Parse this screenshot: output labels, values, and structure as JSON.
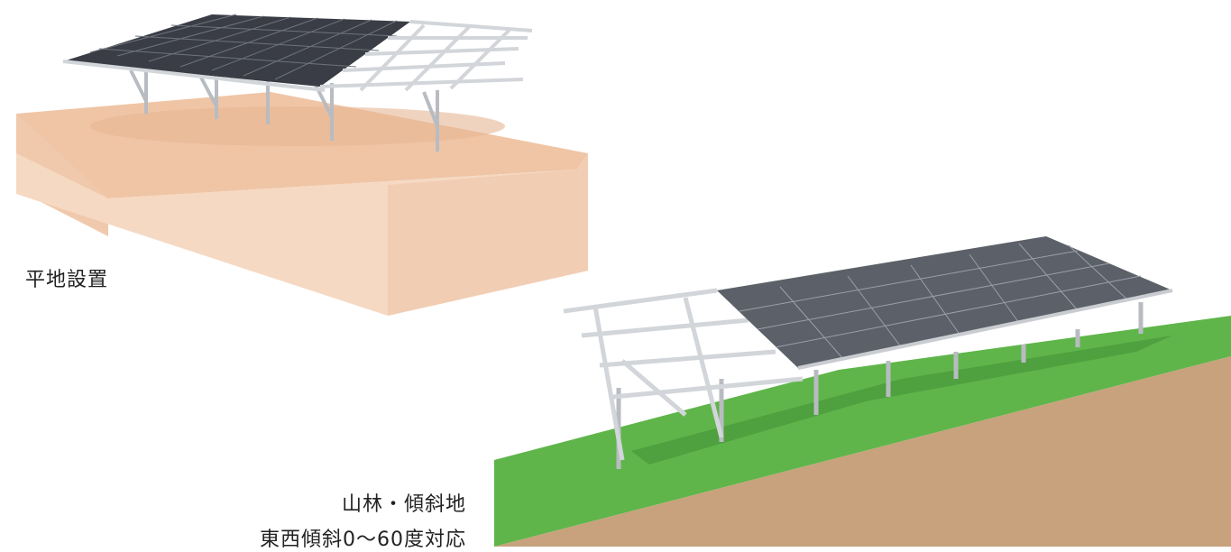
{
  "labels": {
    "flat": "平地設置",
    "slope_title": "山林・傾斜地",
    "slope_sub": "東西傾斜0〜60度対応"
  },
  "colors": {
    "ground_top": "#efc5a6",
    "ground_side": "#f3d3bb",
    "ground_front": "#f6dcc8",
    "panel": "#3a3d45",
    "frame": "#c9ccd1",
    "grass": "#5fb54a",
    "soil": "#c7a27c"
  }
}
